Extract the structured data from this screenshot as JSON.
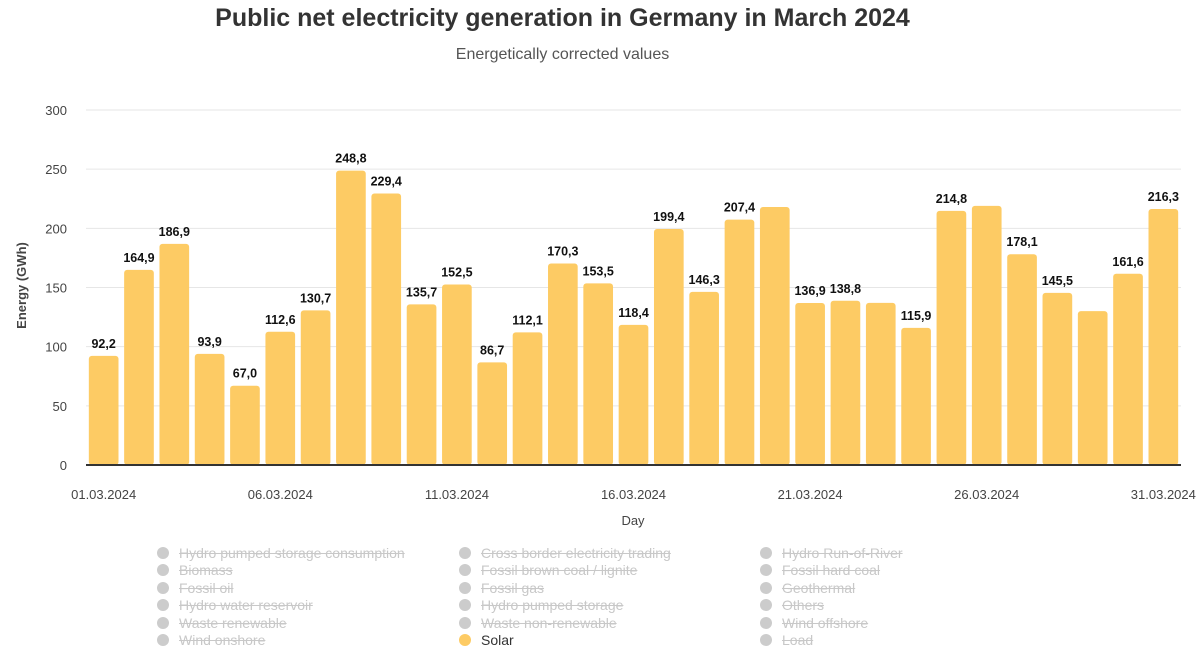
{
  "title": "Public net electricity generation in Germany in March 2024",
  "subtitle": "Energetically corrected values",
  "colors": {
    "bar": "#fdcb64",
    "grid": "#e6e6e6",
    "axis": "#333333",
    "legend_inactive": "#cccccc"
  },
  "chart_data": {
    "type": "bar",
    "xlabel": "Day",
    "ylabel": "Energy (GWh)",
    "ylim": [
      0,
      300
    ],
    "yticks": [
      0,
      50,
      100,
      150,
      200,
      250,
      300
    ],
    "xtick_labels": [
      "01.03.2024",
      "06.03.2024",
      "11.03.2024",
      "16.03.2024",
      "21.03.2024",
      "26.03.2024",
      "31.03.2024"
    ],
    "grid": true,
    "categories": [
      "01.03.2024",
      "02.03.2024",
      "03.03.2024",
      "04.03.2024",
      "05.03.2024",
      "06.03.2024",
      "07.03.2024",
      "08.03.2024",
      "09.03.2024",
      "10.03.2024",
      "11.03.2024",
      "12.03.2024",
      "13.03.2024",
      "14.03.2024",
      "15.03.2024",
      "16.03.2024",
      "17.03.2024",
      "18.03.2024",
      "19.03.2024",
      "20.03.2024",
      "21.03.2024",
      "22.03.2024",
      "23.03.2024",
      "24.03.2024",
      "25.03.2024",
      "26.03.2024",
      "27.03.2024",
      "28.03.2024",
      "29.03.2024",
      "30.03.2024",
      "31.03.2024"
    ],
    "series": [
      {
        "name": "Solar",
        "values": [
          92.2,
          164.9,
          186.9,
          93.9,
          67.0,
          112.6,
          130.7,
          248.8,
          229.4,
          135.7,
          152.5,
          86.7,
          112.1,
          170.3,
          153.5,
          118.4,
          199.4,
          146.3,
          207.4,
          218.0,
          136.9,
          138.8,
          137.0,
          115.9,
          214.8,
          219.0,
          178.1,
          145.5,
          130.0,
          161.6,
          216.3
        ],
        "labels": [
          "92,2",
          "164,9",
          "186,9",
          "93,9",
          "67,0",
          "112,6",
          "130,7",
          "248,8",
          "229,4",
          "135,7",
          "152,5",
          "86,7",
          "112,1",
          "170,3",
          "153,5",
          "118,4",
          "199,4",
          "146,3",
          "207,4",
          "",
          "136,9",
          "138,8",
          "",
          "115,9",
          "214,8",
          "",
          "178,1",
          "145,5",
          "",
          "161,6",
          "216,3"
        ]
      }
    ],
    "legend": {
      "placement": "bottom",
      "items": [
        {
          "label": "Hydro pumped storage consumption",
          "active": false
        },
        {
          "label": "Cross border electricity trading",
          "active": false
        },
        {
          "label": "Hydro Run-of-River",
          "active": false
        },
        {
          "label": "Biomass",
          "active": false
        },
        {
          "label": "Fossil brown coal / lignite",
          "active": false
        },
        {
          "label": "Fossil hard coal",
          "active": false
        },
        {
          "label": "Fossil oil",
          "active": false
        },
        {
          "label": "Fossil gas",
          "active": false
        },
        {
          "label": "Geothermal",
          "active": false
        },
        {
          "label": "Hydro water reservoir",
          "active": false
        },
        {
          "label": "Hydro pumped storage",
          "active": false
        },
        {
          "label": "Others",
          "active": false
        },
        {
          "label": "Waste renewable",
          "active": false
        },
        {
          "label": "Waste non-renewable",
          "active": false
        },
        {
          "label": "Wind offshore",
          "active": false
        },
        {
          "label": "Wind onshore",
          "active": false
        },
        {
          "label": "Solar",
          "active": true
        },
        {
          "label": "Load",
          "active": false
        }
      ]
    }
  }
}
